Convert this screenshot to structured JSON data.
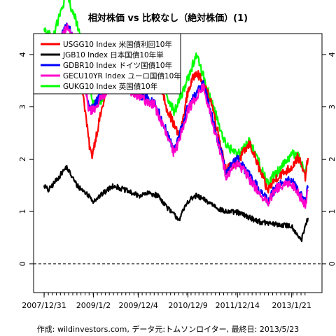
{
  "chart_data": {
    "type": "line",
    "title": "相対株価 vs 比較なし（絶対株価）(1)",
    "caption": "作成: wildinvestors.com, データ元:トムソンロイター, 最終日: 2013/5/23",
    "x_tick_labels": [
      "2007/12/31",
      "2009/1/2",
      "2009/12/4",
      "2010/12/9",
      "2011/12/14",
      "2013/1/21"
    ],
    "x_tick_dates": [
      "2007-12-31",
      "2009-01-02",
      "2009-12-04",
      "2010-12-09",
      "2011-12-14",
      "2013-01-21"
    ],
    "x_range": [
      "2007-12-31",
      "2013-05-23"
    ],
    "y_ticks": [
      0,
      1,
      2,
      3,
      4
    ],
    "ylim": [
      -0.55,
      4.4
    ],
    "reference_line": {
      "y": 0,
      "style": "dashed"
    },
    "grid": false,
    "legend_position": "top-left",
    "series": [
      {
        "name": "USGG10 Index 米国債利回10年",
        "color": "#ff0000",
        "points": [
          [
            "2007-12-31",
            3.8
          ],
          [
            "2008-03-01",
            3.5
          ],
          [
            "2008-06-01",
            4.0
          ],
          [
            "2008-08-01",
            3.8
          ],
          [
            "2008-10-01",
            3.6
          ],
          [
            "2008-12-01",
            2.3
          ],
          [
            "2008-12-20",
            2.05
          ],
          [
            "2009-01-02",
            2.2
          ],
          [
            "2009-03-01",
            2.9
          ],
          [
            "2009-06-10",
            3.9
          ],
          [
            "2009-09-01",
            3.4
          ],
          [
            "2009-12-04",
            3.4
          ],
          [
            "2010-04-01",
            3.9
          ],
          [
            "2010-07-01",
            3.0
          ],
          [
            "2010-10-08",
            2.4
          ],
          [
            "2010-12-09",
            3.3
          ],
          [
            "2011-02-10",
            3.7
          ],
          [
            "2011-06-01",
            3.1
          ],
          [
            "2011-09-20",
            1.8
          ],
          [
            "2011-12-14",
            1.95
          ],
          [
            "2012-03-15",
            2.3
          ],
          [
            "2012-07-24",
            1.4
          ],
          [
            "2012-10-01",
            1.65
          ],
          [
            "2013-01-21",
            1.85
          ],
          [
            "2013-03-11",
            2.05
          ],
          [
            "2013-05-02",
            1.65
          ],
          [
            "2013-05-23",
            2.02
          ]
        ]
      },
      {
        "name": "JGB10 Index 日本国債10年単",
        "color": "#000000",
        "points": [
          [
            "2007-12-31",
            1.5
          ],
          [
            "2008-02-01",
            1.4
          ],
          [
            "2008-04-01",
            1.6
          ],
          [
            "2008-06-15",
            1.85
          ],
          [
            "2008-09-01",
            1.5
          ],
          [
            "2008-12-01",
            1.3
          ],
          [
            "2009-01-02",
            1.2
          ],
          [
            "2009-06-01",
            1.5
          ],
          [
            "2009-12-04",
            1.3
          ],
          [
            "2010-03-01",
            1.35
          ],
          [
            "2010-05-01",
            1.3
          ],
          [
            "2010-08-01",
            1.0
          ],
          [
            "2010-10-05",
            0.85
          ],
          [
            "2010-12-09",
            1.2
          ],
          [
            "2011-02-10",
            1.3
          ],
          [
            "2011-06-01",
            1.15
          ],
          [
            "2011-09-01",
            1.0
          ],
          [
            "2011-12-14",
            0.98
          ],
          [
            "2012-06-01",
            0.8
          ],
          [
            "2012-10-01",
            0.75
          ],
          [
            "2013-01-21",
            0.72
          ],
          [
            "2013-04-05",
            0.45
          ],
          [
            "2013-04-20",
            0.6
          ],
          [
            "2013-05-23",
            0.88
          ]
        ]
      },
      {
        "name": "GDBR10 Index ドイツ国債10年",
        "color": "#0000ff",
        "points": [
          [
            "2007-12-31",
            4.3
          ],
          [
            "2008-03-01",
            3.9
          ],
          [
            "2008-06-15",
            4.6
          ],
          [
            "2008-09-01",
            4.2
          ],
          [
            "2008-12-01",
            3.0
          ],
          [
            "2009-01-02",
            3.0
          ],
          [
            "2009-06-10",
            3.6
          ],
          [
            "2009-12-04",
            3.25
          ],
          [
            "2010-04-01",
            3.1
          ],
          [
            "2010-08-30",
            2.15
          ],
          [
            "2010-12-09",
            3.0
          ],
          [
            "2011-04-01",
            3.45
          ],
          [
            "2011-09-20",
            1.75
          ],
          [
            "2011-12-14",
            2.0
          ],
          [
            "2012-07-24",
            1.2
          ],
          [
            "2012-10-01",
            1.5
          ],
          [
            "2013-01-21",
            1.6
          ],
          [
            "2013-05-02",
            1.2
          ],
          [
            "2013-05-23",
            1.45
          ]
        ]
      },
      {
        "name": "GECU10YR Index ユーロ国債10年",
        "color": "#ff00cc",
        "points": [
          [
            "2007-12-31",
            4.3
          ],
          [
            "2008-03-01",
            3.9
          ],
          [
            "2008-06-15",
            4.6
          ],
          [
            "2008-09-01",
            4.2
          ],
          [
            "2008-12-01",
            3.0
          ],
          [
            "2009-01-02",
            3.0
          ],
          [
            "2009-06-10",
            3.6
          ],
          [
            "2009-12-04",
            3.25
          ],
          [
            "2010-04-01",
            3.1
          ],
          [
            "2010-08-30",
            2.15
          ],
          [
            "2010-12-09",
            3.0
          ],
          [
            "2011-04-01",
            3.45
          ],
          [
            "2011-09-20",
            1.75
          ],
          [
            "2011-12-14",
            2.0
          ],
          [
            "2012-07-24",
            1.2
          ],
          [
            "2012-10-01",
            1.5
          ],
          [
            "2013-01-21",
            1.6
          ],
          [
            "2013-05-02",
            1.2
          ],
          [
            "2013-05-23",
            1.45
          ]
        ]
      },
      {
        "name": "GUKG10 Index 英国債10年",
        "color": "#00ff00",
        "points": [
          [
            "2007-12-31",
            4.5
          ],
          [
            "2008-03-01",
            4.3
          ],
          [
            "2008-06-15",
            5.15
          ],
          [
            "2008-09-01",
            4.6
          ],
          [
            "2008-12-01",
            3.4
          ],
          [
            "2009-01-02",
            3.05
          ],
          [
            "2009-03-10",
            3.1
          ],
          [
            "2009-06-10",
            3.8
          ],
          [
            "2009-12-04",
            3.8
          ],
          [
            "2010-02-01",
            4.1
          ],
          [
            "2010-08-30",
            2.9
          ],
          [
            "2010-12-09",
            3.55
          ],
          [
            "2011-02-10",
            4.0
          ],
          [
            "2011-09-20",
            2.25
          ],
          [
            "2011-12-14",
            2.1
          ],
          [
            "2012-03-15",
            2.35
          ],
          [
            "2012-07-24",
            1.55
          ],
          [
            "2012-10-01",
            1.75
          ],
          [
            "2013-01-21",
            2.1
          ],
          [
            "2013-03-11",
            2.1
          ],
          [
            "2013-05-02",
            1.7
          ],
          [
            "2013-05-23",
            1.95
          ]
        ]
      }
    ]
  }
}
